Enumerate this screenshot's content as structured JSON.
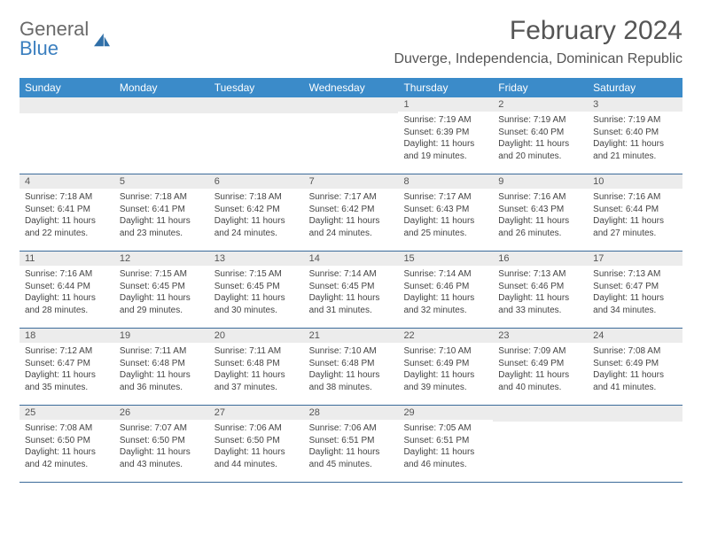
{
  "brand": {
    "line1": "General",
    "line2": "Blue"
  },
  "title": "February 2024",
  "location": "Duverge, Independencia, Dominican Republic",
  "colors": {
    "header_bg": "#3b8bc9",
    "header_text": "#ffffff",
    "daynum_bg": "#ececec",
    "week_border": "#3b6b9a",
    "logo_blue": "#3b7fbf",
    "logo_gray": "#6a6a6a",
    "body_text": "#444444"
  },
  "weekdays": [
    "Sunday",
    "Monday",
    "Tuesday",
    "Wednesday",
    "Thursday",
    "Friday",
    "Saturday"
  ],
  "weeks": [
    [
      {
        "n": "",
        "sr": "",
        "ss": "",
        "dl": ""
      },
      {
        "n": "",
        "sr": "",
        "ss": "",
        "dl": ""
      },
      {
        "n": "",
        "sr": "",
        "ss": "",
        "dl": ""
      },
      {
        "n": "",
        "sr": "",
        "ss": "",
        "dl": ""
      },
      {
        "n": "1",
        "sr": "Sunrise: 7:19 AM",
        "ss": "Sunset: 6:39 PM",
        "dl": "Daylight: 11 hours and 19 minutes."
      },
      {
        "n": "2",
        "sr": "Sunrise: 7:19 AM",
        "ss": "Sunset: 6:40 PM",
        "dl": "Daylight: 11 hours and 20 minutes."
      },
      {
        "n": "3",
        "sr": "Sunrise: 7:19 AM",
        "ss": "Sunset: 6:40 PM",
        "dl": "Daylight: 11 hours and 21 minutes."
      }
    ],
    [
      {
        "n": "4",
        "sr": "Sunrise: 7:18 AM",
        "ss": "Sunset: 6:41 PM",
        "dl": "Daylight: 11 hours and 22 minutes."
      },
      {
        "n": "5",
        "sr": "Sunrise: 7:18 AM",
        "ss": "Sunset: 6:41 PM",
        "dl": "Daylight: 11 hours and 23 minutes."
      },
      {
        "n": "6",
        "sr": "Sunrise: 7:18 AM",
        "ss": "Sunset: 6:42 PM",
        "dl": "Daylight: 11 hours and 24 minutes."
      },
      {
        "n": "7",
        "sr": "Sunrise: 7:17 AM",
        "ss": "Sunset: 6:42 PM",
        "dl": "Daylight: 11 hours and 24 minutes."
      },
      {
        "n": "8",
        "sr": "Sunrise: 7:17 AM",
        "ss": "Sunset: 6:43 PM",
        "dl": "Daylight: 11 hours and 25 minutes."
      },
      {
        "n": "9",
        "sr": "Sunrise: 7:16 AM",
        "ss": "Sunset: 6:43 PM",
        "dl": "Daylight: 11 hours and 26 minutes."
      },
      {
        "n": "10",
        "sr": "Sunrise: 7:16 AM",
        "ss": "Sunset: 6:44 PM",
        "dl": "Daylight: 11 hours and 27 minutes."
      }
    ],
    [
      {
        "n": "11",
        "sr": "Sunrise: 7:16 AM",
        "ss": "Sunset: 6:44 PM",
        "dl": "Daylight: 11 hours and 28 minutes."
      },
      {
        "n": "12",
        "sr": "Sunrise: 7:15 AM",
        "ss": "Sunset: 6:45 PM",
        "dl": "Daylight: 11 hours and 29 minutes."
      },
      {
        "n": "13",
        "sr": "Sunrise: 7:15 AM",
        "ss": "Sunset: 6:45 PM",
        "dl": "Daylight: 11 hours and 30 minutes."
      },
      {
        "n": "14",
        "sr": "Sunrise: 7:14 AM",
        "ss": "Sunset: 6:45 PM",
        "dl": "Daylight: 11 hours and 31 minutes."
      },
      {
        "n": "15",
        "sr": "Sunrise: 7:14 AM",
        "ss": "Sunset: 6:46 PM",
        "dl": "Daylight: 11 hours and 32 minutes."
      },
      {
        "n": "16",
        "sr": "Sunrise: 7:13 AM",
        "ss": "Sunset: 6:46 PM",
        "dl": "Daylight: 11 hours and 33 minutes."
      },
      {
        "n": "17",
        "sr": "Sunrise: 7:13 AM",
        "ss": "Sunset: 6:47 PM",
        "dl": "Daylight: 11 hours and 34 minutes."
      }
    ],
    [
      {
        "n": "18",
        "sr": "Sunrise: 7:12 AM",
        "ss": "Sunset: 6:47 PM",
        "dl": "Daylight: 11 hours and 35 minutes."
      },
      {
        "n": "19",
        "sr": "Sunrise: 7:11 AM",
        "ss": "Sunset: 6:48 PM",
        "dl": "Daylight: 11 hours and 36 minutes."
      },
      {
        "n": "20",
        "sr": "Sunrise: 7:11 AM",
        "ss": "Sunset: 6:48 PM",
        "dl": "Daylight: 11 hours and 37 minutes."
      },
      {
        "n": "21",
        "sr": "Sunrise: 7:10 AM",
        "ss": "Sunset: 6:48 PM",
        "dl": "Daylight: 11 hours and 38 minutes."
      },
      {
        "n": "22",
        "sr": "Sunrise: 7:10 AM",
        "ss": "Sunset: 6:49 PM",
        "dl": "Daylight: 11 hours and 39 minutes."
      },
      {
        "n": "23",
        "sr": "Sunrise: 7:09 AM",
        "ss": "Sunset: 6:49 PM",
        "dl": "Daylight: 11 hours and 40 minutes."
      },
      {
        "n": "24",
        "sr": "Sunrise: 7:08 AM",
        "ss": "Sunset: 6:49 PM",
        "dl": "Daylight: 11 hours and 41 minutes."
      }
    ],
    [
      {
        "n": "25",
        "sr": "Sunrise: 7:08 AM",
        "ss": "Sunset: 6:50 PM",
        "dl": "Daylight: 11 hours and 42 minutes."
      },
      {
        "n": "26",
        "sr": "Sunrise: 7:07 AM",
        "ss": "Sunset: 6:50 PM",
        "dl": "Daylight: 11 hours and 43 minutes."
      },
      {
        "n": "27",
        "sr": "Sunrise: 7:06 AM",
        "ss": "Sunset: 6:50 PM",
        "dl": "Daylight: 11 hours and 44 minutes."
      },
      {
        "n": "28",
        "sr": "Sunrise: 7:06 AM",
        "ss": "Sunset: 6:51 PM",
        "dl": "Daylight: 11 hours and 45 minutes."
      },
      {
        "n": "29",
        "sr": "Sunrise: 7:05 AM",
        "ss": "Sunset: 6:51 PM",
        "dl": "Daylight: 11 hours and 46 minutes."
      },
      {
        "n": "",
        "sr": "",
        "ss": "",
        "dl": ""
      },
      {
        "n": "",
        "sr": "",
        "ss": "",
        "dl": ""
      }
    ]
  ]
}
